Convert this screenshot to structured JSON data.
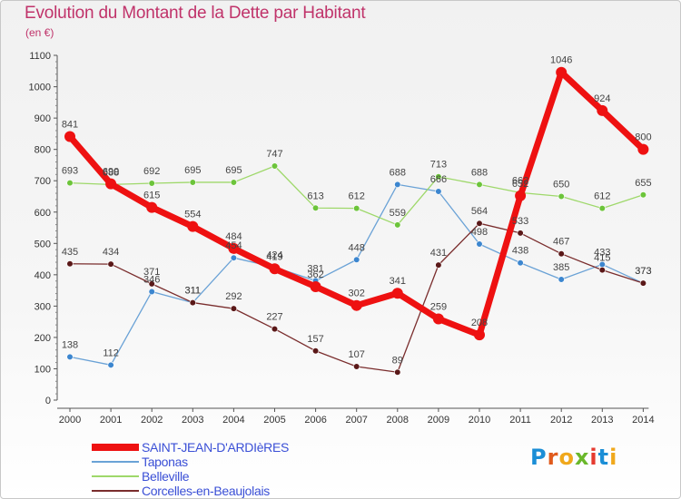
{
  "header": {
    "title": "Evolution du Montant de la Dette par Habitant",
    "subtitle": "(en €)"
  },
  "brand": {
    "logo_letters": [
      {
        "t": "P",
        "c": "#1b8ed6"
      },
      {
        "t": "r",
        "c": "#e05a1c"
      },
      {
        "t": "o",
        "c": "#f0a81c"
      },
      {
        "t": "x",
        "c": "#6ab82b"
      },
      {
        "t": "i",
        "c": "#e53a2f"
      },
      {
        "t": "t",
        "c": "#1b8ed6"
      },
      {
        "t": "i",
        "c": "#f0a81c"
      }
    ]
  },
  "chart_data": {
    "type": "line",
    "title": "Evolution du Montant de la Dette par Habitant",
    "subtitle": "(en €)",
    "x": [
      "2000",
      "2001",
      "2002",
      "2003",
      "2004",
      "2005",
      "2006",
      "2007",
      "2008",
      "2009",
      "2010",
      "2011",
      "2012",
      "2013",
      "2014"
    ],
    "ylim": [
      0,
      1100
    ],
    "yticks": [
      0,
      100,
      200,
      300,
      400,
      500,
      600,
      700,
      800,
      900,
      1000,
      1100
    ],
    "grid": false,
    "legend_position": "bottom-left",
    "series": [
      {
        "name": "SAINT-JEAN-D'ARDIèRES",
        "color": "#ee1111",
        "marker": "#ee1111",
        "width": 7,
        "marker_r": 6,
        "values": [
          841,
          690,
          615,
          554,
          484,
          419,
          362,
          302,
          341,
          259,
          208,
          652,
          1046,
          924,
          800
        ]
      },
      {
        "name": "Taponas",
        "color": "#6aa2d6",
        "marker": "#3c86cf",
        "width": 1.3,
        "marker_r": 3.3,
        "values": [
          138,
          112,
          346,
          311,
          454,
          424,
          381,
          448,
          688,
          666,
          498,
          438,
          385,
          433,
          373
        ]
      },
      {
        "name": "Belleville",
        "color": "#9ed86a",
        "marker": "#6cc43a",
        "width": 1.3,
        "marker_r": 3.3,
        "values": [
          693,
          688,
          692,
          695,
          695,
          747,
          613,
          612,
          559,
          713,
          688,
          662,
          650,
          612,
          655
        ]
      },
      {
        "name": "Corcelles-en-Beaujolais",
        "color": "#7a2d2d",
        "marker": "#5a1818",
        "width": 1.3,
        "marker_r": 3.3,
        "values": [
          435,
          434,
          371,
          311,
          292,
          227,
          157,
          107,
          89,
          431,
          564,
          533,
          467,
          415,
          373
        ]
      }
    ]
  }
}
